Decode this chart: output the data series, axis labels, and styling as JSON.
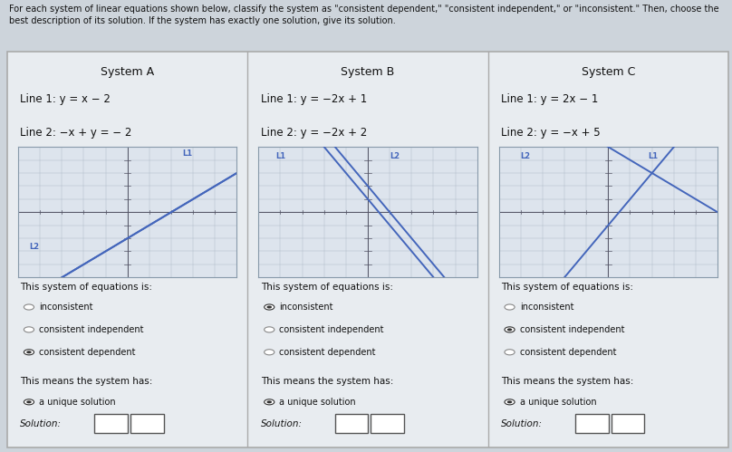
{
  "bg_color": "#cdd4db",
  "panel_bg": "#e8ecf0",
  "title_text": "For each system of linear equations shown below, classify the system as \"consistent dependent,\" \"consistent independent,\" or \"inconsistent.\" Then, choose the\nbest description of its solution. If the system has exactly one solution, give its solution.",
  "line_color": "#4466bb",
  "grid_color": "#b0bbc8",
  "axis_color": "#555566",
  "text_color": "#111111",
  "radio_color": "#888888",
  "graph_bg": "#dde4ed",
  "systems": [
    {
      "name": "System A",
      "line1": "Line 1: y = x − 2",
      "line2": "Line 2: −x + y = − 2",
      "line1_eq": [
        1,
        -2
      ],
      "line2_eq": [
        1,
        -2
      ],
      "classification_options": [
        "inconsistent",
        "consistent independent",
        "consistent dependent"
      ],
      "selected_class_index": 2,
      "solution_selected": true,
      "solution_text": "a unique solution"
    },
    {
      "name": "System B",
      "line1": "Line 1: y = −2x + 1",
      "line2": "Line 2: y = −2x + 2",
      "line1_eq": [
        -2,
        1
      ],
      "line2_eq": [
        -2,
        2
      ],
      "classification_options": [
        "inconsistent",
        "consistent independent",
        "consistent dependent"
      ],
      "selected_class_index": 0,
      "solution_selected": true,
      "solution_text": "a unique solution"
    },
    {
      "name": "System C",
      "line1": "Line 1: y = 2x − 1",
      "line2": "Line 2: y = −x + 5",
      "line1_eq": [
        2,
        -1
      ],
      "line2_eq": [
        -1,
        5
      ],
      "classification_options": [
        "inconsistent",
        "consistent independent",
        "consistent dependent"
      ],
      "selected_class_index": 1,
      "solution_selected": true,
      "solution_text": "a unique solution"
    }
  ]
}
